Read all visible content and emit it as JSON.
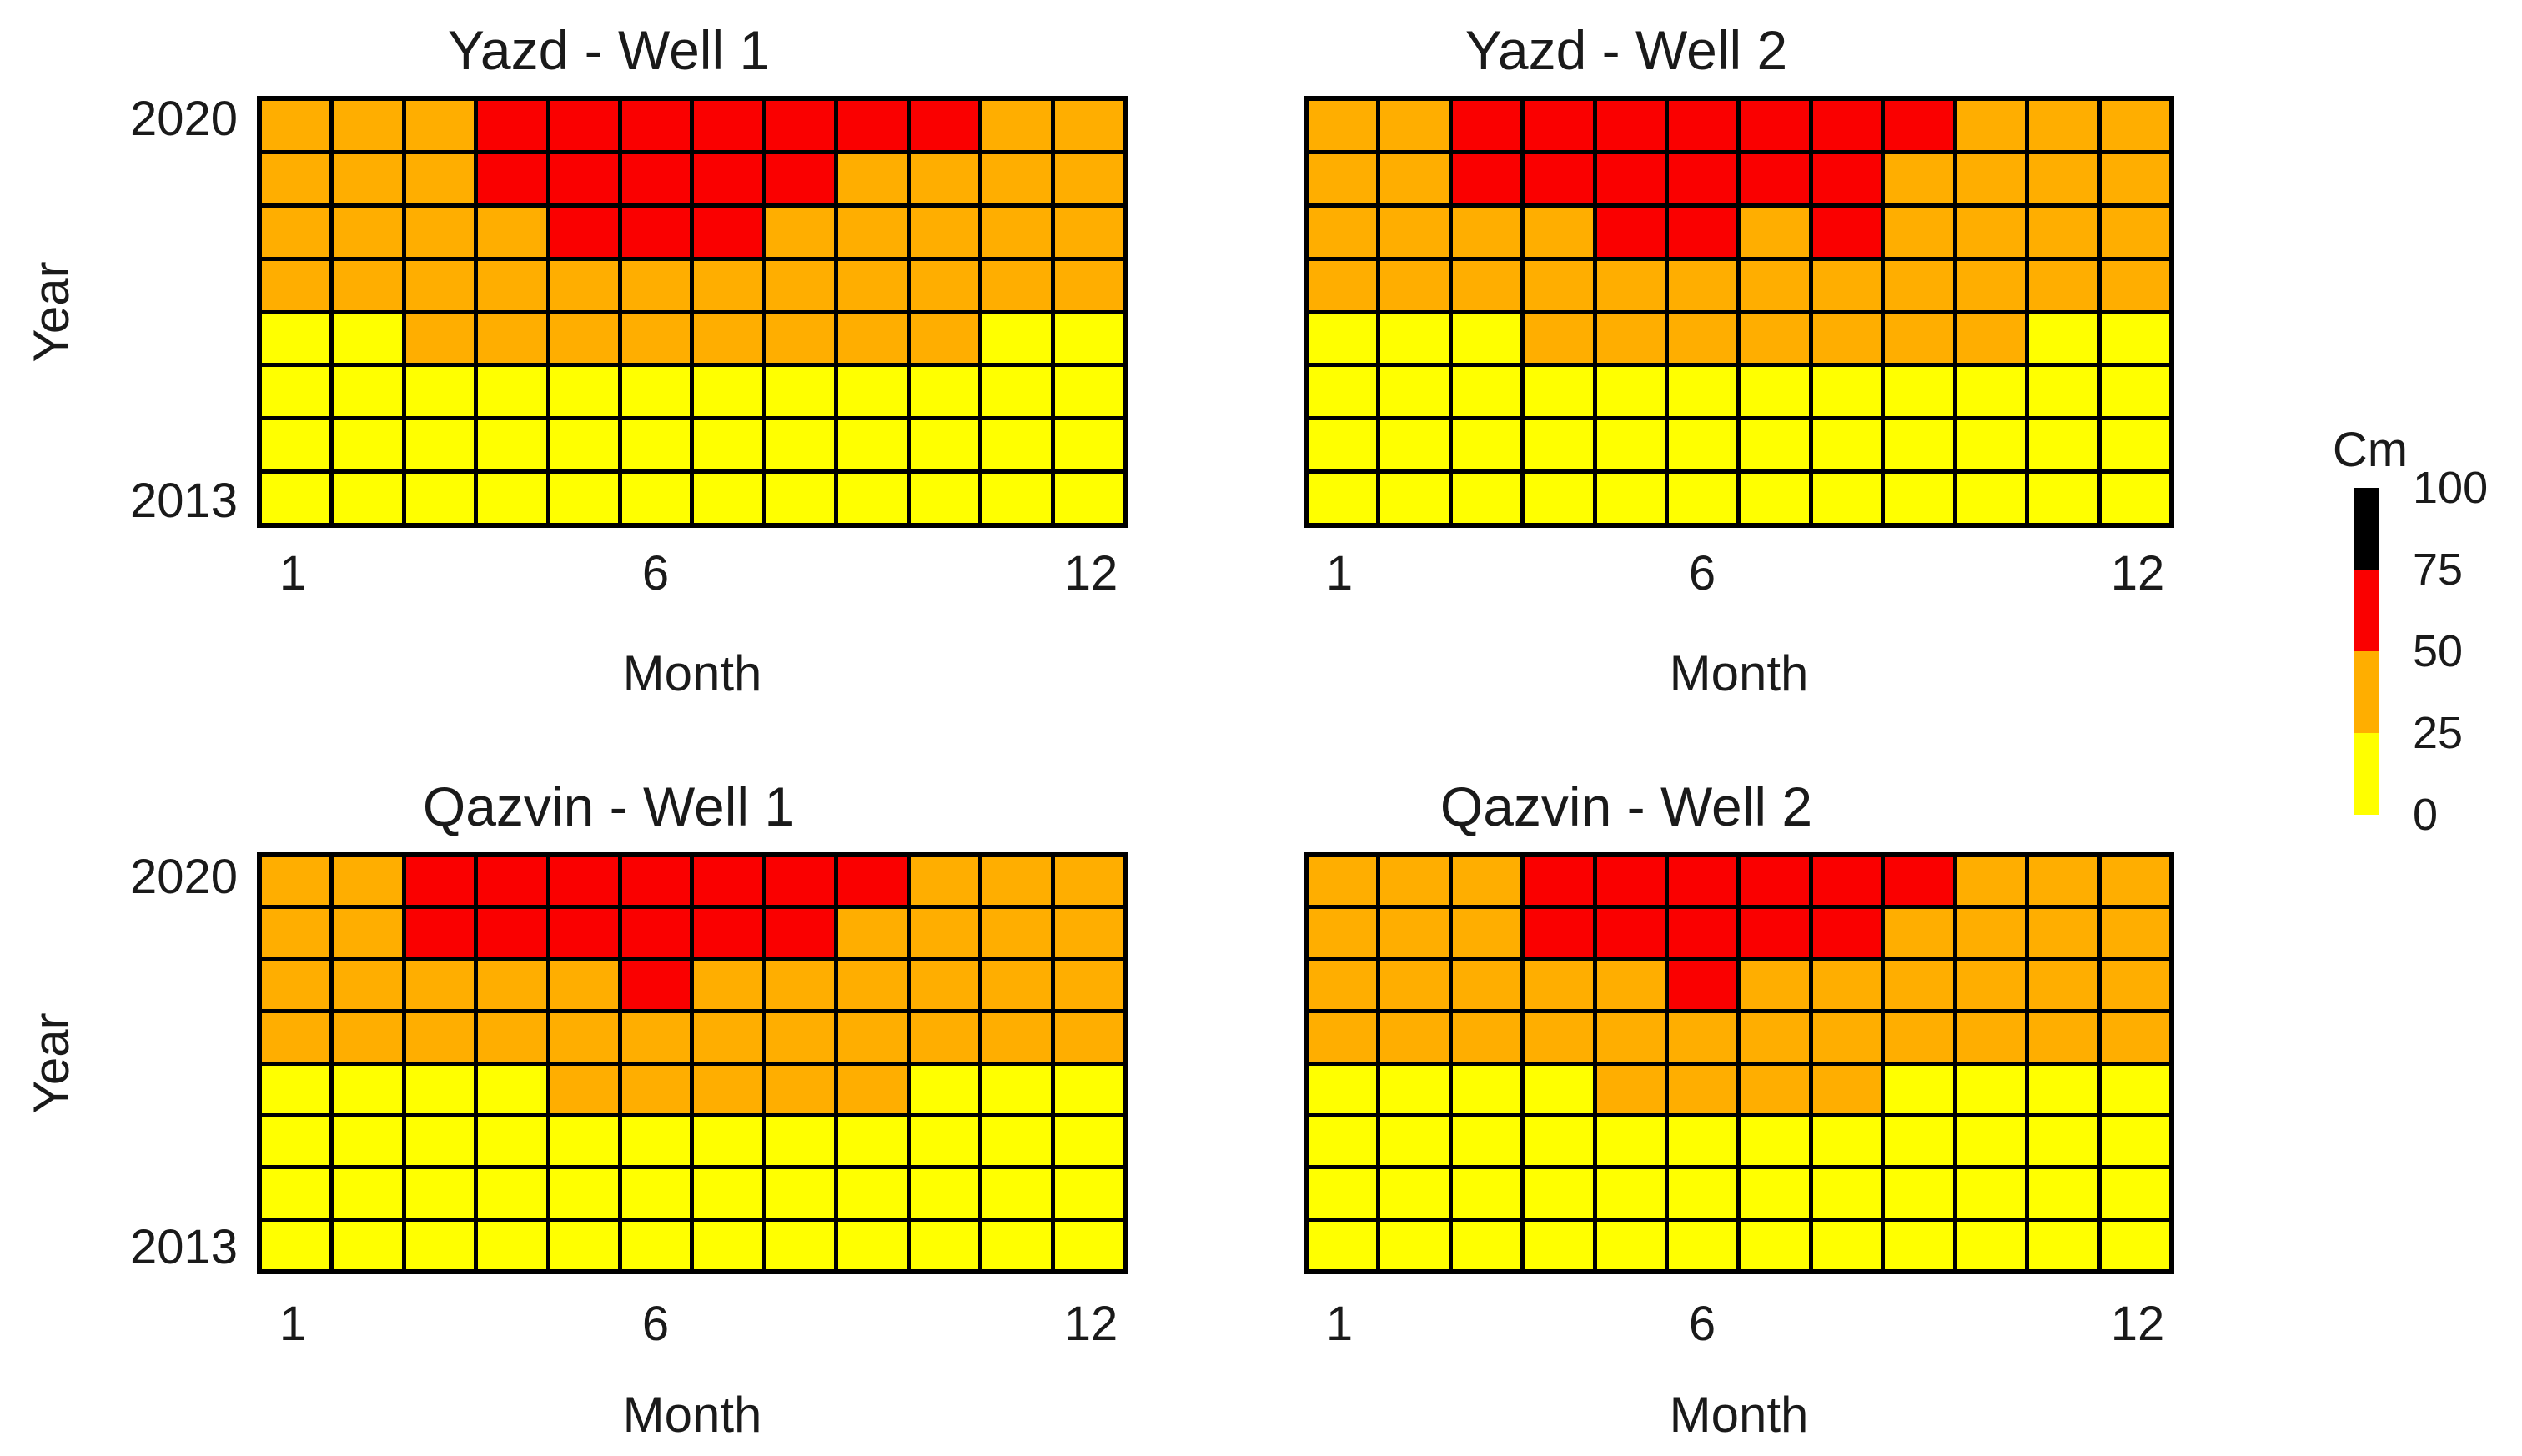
{
  "unit": "Cm",
  "colors": {
    "yellow": "#FFFF00",
    "orange": "#FFAE00",
    "red": "#FA0000",
    "black": "#000000",
    "grid_line": "#000000",
    "text": "#1a1a1a",
    "background": "#ffffff"
  },
  "code_map": {
    "Y": "yellow",
    "O": "orange",
    "R": "red",
    "K": "black"
  },
  "axes": {
    "x_label": "Month",
    "y_label": "Year",
    "x_ticks": [
      "1",
      "6",
      "12"
    ],
    "y_ticks": [
      "2020",
      "2013"
    ]
  },
  "legend": {
    "title": "Cm",
    "tick_labels": [
      "100",
      "75",
      "50",
      "25",
      "0"
    ],
    "position": "right",
    "segments": [
      {
        "color": "black",
        "range": "75-100"
      },
      {
        "color": "red",
        "range": "50-75"
      },
      {
        "color": "orange",
        "range": "25-50"
      },
      {
        "color": "yellow",
        "range": "0-25"
      }
    ]
  },
  "chart_data": [
    {
      "type": "heatmap",
      "title": "Yazd - Well 1",
      "xlabel": "Month",
      "ylabel": "Year",
      "unit": "Cm",
      "x": [
        1,
        2,
        3,
        4,
        5,
        6,
        7,
        8,
        9,
        10,
        11,
        12
      ],
      "y": [
        2020,
        2019,
        2018,
        2017,
        2016,
        2015,
        2014,
        2013
      ],
      "value_bins_cm": {
        "Y": "0-25",
        "O": "25-50",
        "R": "50-75",
        "K": "75-100"
      },
      "cells": [
        [
          "O",
          "O",
          "O",
          "R",
          "R",
          "R",
          "R",
          "R",
          "R",
          "R",
          "O",
          "O"
        ],
        [
          "O",
          "O",
          "O",
          "R",
          "R",
          "R",
          "R",
          "R",
          "O",
          "O",
          "O",
          "O"
        ],
        [
          "O",
          "O",
          "O",
          "O",
          "R",
          "R",
          "R",
          "O",
          "O",
          "O",
          "O",
          "O"
        ],
        [
          "O",
          "O",
          "O",
          "O",
          "O",
          "O",
          "O",
          "O",
          "O",
          "O",
          "O",
          "O"
        ],
        [
          "Y",
          "Y",
          "O",
          "O",
          "O",
          "O",
          "O",
          "O",
          "O",
          "O",
          "Y",
          "Y"
        ],
        [
          "Y",
          "Y",
          "Y",
          "Y",
          "Y",
          "Y",
          "Y",
          "Y",
          "Y",
          "Y",
          "Y",
          "Y"
        ],
        [
          "Y",
          "Y",
          "Y",
          "Y",
          "Y",
          "Y",
          "Y",
          "Y",
          "Y",
          "Y",
          "Y",
          "Y"
        ],
        [
          "Y",
          "Y",
          "Y",
          "Y",
          "Y",
          "Y",
          "Y",
          "Y",
          "Y",
          "Y",
          "Y",
          "Y"
        ]
      ]
    },
    {
      "type": "heatmap",
      "title": "Yazd - Well 2",
      "xlabel": "Month",
      "ylabel": "Year",
      "unit": "Cm",
      "x": [
        1,
        2,
        3,
        4,
        5,
        6,
        7,
        8,
        9,
        10,
        11,
        12
      ],
      "y": [
        2020,
        2019,
        2018,
        2017,
        2016,
        2015,
        2014,
        2013
      ],
      "value_bins_cm": {
        "Y": "0-25",
        "O": "25-50",
        "R": "50-75",
        "K": "75-100"
      },
      "cells": [
        [
          "O",
          "O",
          "R",
          "R",
          "R",
          "R",
          "R",
          "R",
          "R",
          "O",
          "O",
          "O"
        ],
        [
          "O",
          "O",
          "R",
          "R",
          "R",
          "R",
          "R",
          "R",
          "O",
          "O",
          "O",
          "O"
        ],
        [
          "O",
          "O",
          "O",
          "O",
          "R",
          "R",
          "O",
          "R",
          "O",
          "O",
          "O",
          "O"
        ],
        [
          "O",
          "O",
          "O",
          "O",
          "O",
          "O",
          "O",
          "O",
          "O",
          "O",
          "O",
          "O"
        ],
        [
          "Y",
          "Y",
          "Y",
          "O",
          "O",
          "O",
          "O",
          "O",
          "O",
          "O",
          "Y",
          "Y"
        ],
        [
          "Y",
          "Y",
          "Y",
          "Y",
          "Y",
          "Y",
          "Y",
          "Y",
          "Y",
          "Y",
          "Y",
          "Y"
        ],
        [
          "Y",
          "Y",
          "Y",
          "Y",
          "Y",
          "Y",
          "Y",
          "Y",
          "Y",
          "Y",
          "Y",
          "Y"
        ],
        [
          "Y",
          "Y",
          "Y",
          "Y",
          "Y",
          "Y",
          "Y",
          "Y",
          "Y",
          "Y",
          "Y",
          "Y"
        ]
      ]
    },
    {
      "type": "heatmap",
      "title": "Qazvin - Well 1",
      "xlabel": "Month",
      "ylabel": "Year",
      "unit": "Cm",
      "x": [
        1,
        2,
        3,
        4,
        5,
        6,
        7,
        8,
        9,
        10,
        11,
        12
      ],
      "y": [
        2020,
        2019,
        2018,
        2017,
        2016,
        2015,
        2014,
        2013
      ],
      "value_bins_cm": {
        "Y": "0-25",
        "O": "25-50",
        "R": "50-75",
        "K": "75-100"
      },
      "cells": [
        [
          "O",
          "O",
          "R",
          "R",
          "R",
          "R",
          "R",
          "R",
          "R",
          "O",
          "O",
          "O"
        ],
        [
          "O",
          "O",
          "R",
          "R",
          "R",
          "R",
          "R",
          "R",
          "O",
          "O",
          "O",
          "O"
        ],
        [
          "O",
          "O",
          "O",
          "O",
          "O",
          "R",
          "O",
          "O",
          "O",
          "O",
          "O",
          "O"
        ],
        [
          "O",
          "O",
          "O",
          "O",
          "O",
          "O",
          "O",
          "O",
          "O",
          "O",
          "O",
          "O"
        ],
        [
          "Y",
          "Y",
          "Y",
          "Y",
          "O",
          "O",
          "O",
          "O",
          "O",
          "Y",
          "Y",
          "Y"
        ],
        [
          "Y",
          "Y",
          "Y",
          "Y",
          "Y",
          "Y",
          "Y",
          "Y",
          "Y",
          "Y",
          "Y",
          "Y"
        ],
        [
          "Y",
          "Y",
          "Y",
          "Y",
          "Y",
          "Y",
          "Y",
          "Y",
          "Y",
          "Y",
          "Y",
          "Y"
        ],
        [
          "Y",
          "Y",
          "Y",
          "Y",
          "Y",
          "Y",
          "Y",
          "Y",
          "Y",
          "Y",
          "Y",
          "Y"
        ]
      ]
    },
    {
      "type": "heatmap",
      "title": "Qazvin - Well 2",
      "xlabel": "Month",
      "ylabel": "Year",
      "unit": "Cm",
      "x": [
        1,
        2,
        3,
        4,
        5,
        6,
        7,
        8,
        9,
        10,
        11,
        12
      ],
      "y": [
        2020,
        2019,
        2018,
        2017,
        2016,
        2015,
        2014,
        2013
      ],
      "value_bins_cm": {
        "Y": "0-25",
        "O": "25-50",
        "R": "50-75",
        "K": "75-100"
      },
      "cells": [
        [
          "O",
          "O",
          "O",
          "R",
          "R",
          "R",
          "R",
          "R",
          "R",
          "O",
          "O",
          "O"
        ],
        [
          "O",
          "O",
          "O",
          "R",
          "R",
          "R",
          "R",
          "R",
          "O",
          "O",
          "O",
          "O"
        ],
        [
          "O",
          "O",
          "O",
          "O",
          "O",
          "R",
          "O",
          "O",
          "O",
          "O",
          "O",
          "O"
        ],
        [
          "O",
          "O",
          "O",
          "O",
          "O",
          "O",
          "O",
          "O",
          "O",
          "O",
          "O",
          "O"
        ],
        [
          "Y",
          "Y",
          "Y",
          "Y",
          "O",
          "O",
          "O",
          "O",
          "Y",
          "Y",
          "Y",
          "Y"
        ],
        [
          "Y",
          "Y",
          "Y",
          "Y",
          "Y",
          "Y",
          "Y",
          "Y",
          "Y",
          "Y",
          "Y",
          "Y"
        ],
        [
          "Y",
          "Y",
          "Y",
          "Y",
          "Y",
          "Y",
          "Y",
          "Y",
          "Y",
          "Y",
          "Y",
          "Y"
        ],
        [
          "Y",
          "Y",
          "Y",
          "Y",
          "Y",
          "Y",
          "Y",
          "Y",
          "Y",
          "Y",
          "Y",
          "Y"
        ]
      ]
    }
  ]
}
